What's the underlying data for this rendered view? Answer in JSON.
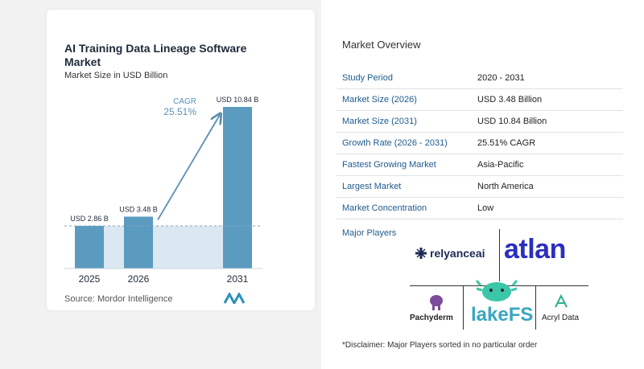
{
  "chart": {
    "title": "AI Training Data Lineage Software Market",
    "subtitle": "Market Size in USD Billion",
    "source": "Source:  Mordor Intelligence",
    "cagr_label": "CAGR",
    "cagr_value": "25.51%"
  },
  "chart_data": {
    "type": "bar",
    "categories": [
      "2025",
      "2026",
      "2031"
    ],
    "values": [
      2.86,
      3.48,
      10.84
    ],
    "data_labels": [
      "USD 2.86 B",
      "USD 3.48 B",
      "USD 10.84 B"
    ],
    "title": "AI Training Data Lineage Software Market",
    "subtitle": "Market Size in USD Billion",
    "ylabel": "",
    "xlabel": "",
    "ylim": [
      0,
      10.84
    ],
    "grid": false,
    "colors": [
      "#5b9bbf",
      "#5b9bbf",
      "#5b9bbf"
    ]
  },
  "overview": {
    "title": "Market Overview",
    "rows": [
      {
        "label": "Study Period",
        "value": "2020 - 2031"
      },
      {
        "label": "Market Size (2026)",
        "value": "USD 3.48 Billion"
      },
      {
        "label": "Market Size (2031)",
        "value": "USD 10.84 Billion"
      },
      {
        "label": "Growth Rate (2026 - 2031)",
        "value": "25.51% CAGR"
      },
      {
        "label": "Fastest Growing Market",
        "value": "Asia-Pacific"
      },
      {
        "label": "Largest Market",
        "value": "North America"
      },
      {
        "label": "Market Concentration",
        "value": "Low"
      }
    ],
    "players_label": "Major Players",
    "players": [
      "relyanceai",
      "atlan",
      "Pachyderm",
      "lakeFS",
      "Acryl Data"
    ],
    "disclaimer": "*Disclaimer: Major Players sorted in no particular order"
  }
}
